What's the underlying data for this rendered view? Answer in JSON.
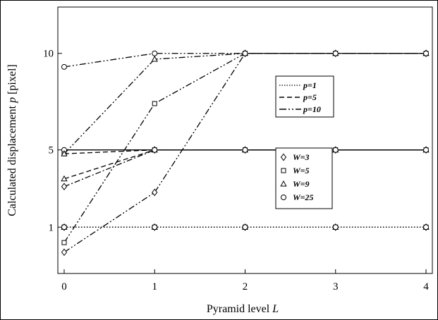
{
  "chart_data": {
    "type": "line",
    "xlabel": "Pyramid level",
    "xlabel_var": "L",
    "ylabel": "Calculated displacement",
    "ylabel_var": "p",
    "ylabel_unit": "[pixel]",
    "x": [
      0,
      1,
      2,
      3,
      4
    ],
    "x_ticks": [
      "0",
      "1",
      "2",
      "3",
      "4"
    ],
    "y_ticks": [
      {
        "label": "1",
        "value": 1
      },
      {
        "label": "5",
        "value": 5
      },
      {
        "label": "10",
        "value": 10
      }
    ],
    "xlim": [
      -0.07,
      4.07
    ],
    "ylim": [
      -1.4,
      12.4
    ],
    "grid": false,
    "line_legend": {
      "placement": "upper-right",
      "entries": [
        {
          "label": "p=1",
          "style": "dotted"
        },
        {
          "label": "p=5",
          "style": "dashed"
        },
        {
          "label": "p=10",
          "style": "dash-dot-dot"
        }
      ]
    },
    "marker_legend": {
      "placement": "middle-right",
      "entries": [
        {
          "label": "W=3",
          "marker": "diamond"
        },
        {
          "label": "W=5",
          "marker": "square"
        },
        {
          "label": "W=9",
          "marker": "triangle"
        },
        {
          "label": "W=25",
          "marker": "circle"
        }
      ]
    },
    "series": [
      {
        "p": "p=1",
        "W": "W=3",
        "style": "dotted",
        "marker": "diamond",
        "values": [
          1,
          1,
          1,
          1,
          1
        ]
      },
      {
        "p": "p=1",
        "W": "W=5",
        "style": "dotted",
        "marker": "square",
        "values": [
          1,
          1,
          1,
          1,
          1
        ]
      },
      {
        "p": "p=1",
        "W": "W=9",
        "style": "dotted",
        "marker": "triangle",
        "values": [
          1,
          1,
          1,
          1,
          1
        ]
      },
      {
        "p": "p=1",
        "W": "W=25",
        "style": "dotted",
        "marker": "circle",
        "values": [
          1,
          1,
          1,
          1,
          1
        ]
      },
      {
        "p": "p=5",
        "W": "W=3",
        "style": "dash-dot",
        "marker": "diamond",
        "values": [
          3.1,
          5,
          5,
          5,
          5
        ]
      },
      {
        "p": "p=5",
        "W": "W=5",
        "style": "dashed",
        "marker": "square",
        "values": [
          4.8,
          5,
          5,
          5,
          5
        ]
      },
      {
        "p": "p=5",
        "W": "W=9",
        "style": "dashed",
        "marker": "triangle",
        "values": [
          3.5,
          5,
          5,
          5,
          5
        ]
      },
      {
        "p": "p=5",
        "W": "W=25",
        "style": "solid",
        "marker": "circle",
        "values": [
          5,
          5,
          5,
          5,
          5
        ]
      },
      {
        "p": "p=10",
        "W": "W=3",
        "style": "dash-dot-dot",
        "marker": "diamond",
        "values": [
          -0.3,
          2.8,
          10,
          10,
          10
        ]
      },
      {
        "p": "p=10",
        "W": "W=5",
        "style": "dash-dot-dot",
        "marker": "square",
        "values": [
          0.2,
          7.4,
          10,
          10,
          10
        ]
      },
      {
        "p": "p=10",
        "W": "W=9",
        "style": "dash-dot-dot",
        "marker": "triangle",
        "values": [
          4.8,
          9.7,
          10,
          10,
          10
        ]
      },
      {
        "p": "p=10",
        "W": "W=25",
        "style": "dash-dot-dot",
        "marker": "circle",
        "values": [
          9.3,
          10,
          10,
          10,
          10
        ]
      }
    ]
  }
}
